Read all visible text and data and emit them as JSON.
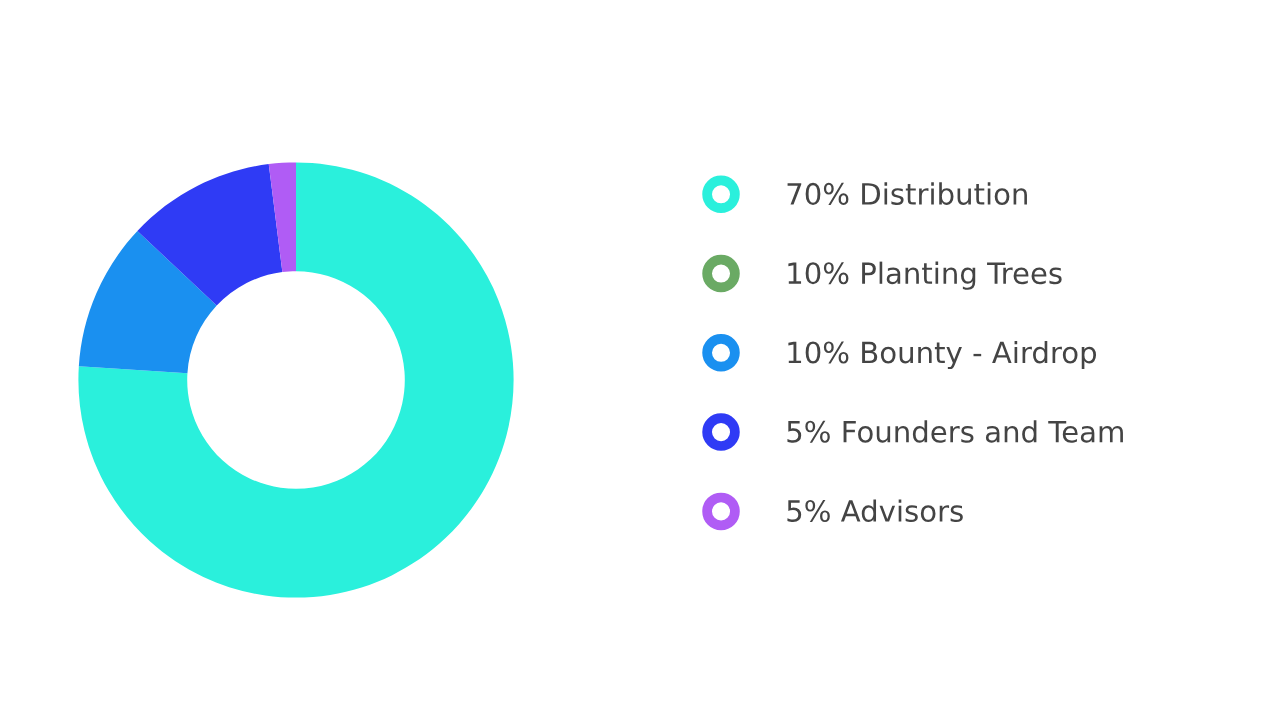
{
  "chart_data": {
    "type": "donut",
    "categories": [
      "70% Distribution",
      "10% Planting Trees",
      "10% Bounty - Airdrop",
      "5% Founders and Team",
      "5% Advisors"
    ],
    "values": [
      76,
      0,
      11,
      11,
      2
    ],
    "colors": [
      "#2af0dc",
      "#6aaa64",
      "#1a90f0",
      "#2f3bf5",
      "#b05cf5"
    ],
    "legend": "right"
  }
}
